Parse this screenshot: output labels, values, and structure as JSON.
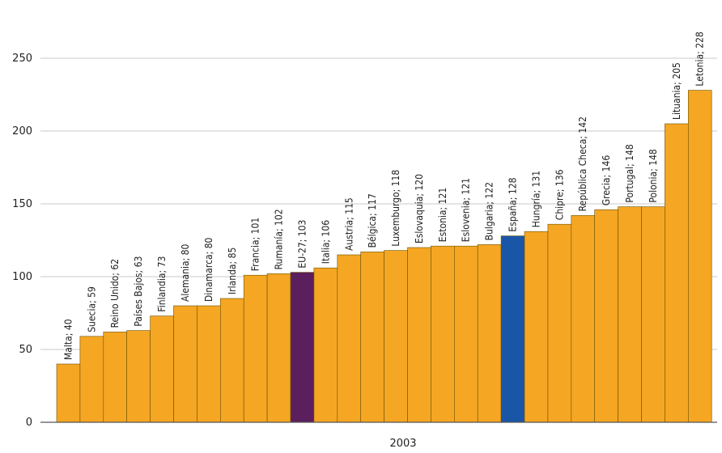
{
  "chart_data": {
    "type": "bar",
    "x_category": "2003",
    "categories": [
      "Malta",
      "Suecia",
      "Reino Unido",
      "Países Bajos",
      "Finlandia",
      "Alemania",
      "Dinamarca",
      "Irlanda",
      "Francia",
      "Rumanía",
      "EU-27",
      "Italia",
      "Austria",
      "Bélgica",
      "Luxemburgo",
      "Eslovaquia",
      "Estonia",
      "Eslovenia",
      "Bulgaria",
      "España",
      "Hungría",
      "Chipre",
      "República Checa",
      "Grecia",
      "Portugal",
      "Polonia",
      "Lituania",
      "Letonia"
    ],
    "values": [
      40,
      59,
      62,
      63,
      73,
      80,
      80,
      85,
      101,
      102,
      103,
      106,
      115,
      117,
      118,
      120,
      121,
      121,
      122,
      128,
      131,
      136,
      142,
      146,
      148,
      148,
      205,
      228
    ],
    "bar_labels": [
      "Malta; 40",
      "Suecia; 59",
      "Reino Unido; 62",
      "Países Bajos; 63",
      "Finlandia; 73",
      "Alemania; 80",
      "Dinamarca; 80",
      "Irlanda; 85",
      "Francia; 101",
      "Rumanía; 102",
      "EU-27; 103",
      "Italia; 106",
      "Austria; 115",
      "Bélgica; 117",
      "Luxemburgo; 118",
      "Eslovaquia; 120",
      "Estonia; 121",
      "Eslovenia; 121",
      "Bulgaria; 122",
      "España; 128",
      "Hungría; 131",
      "Chipre; 136",
      "República Checa; 142",
      "Grecia; 146",
      "Portugal; 148",
      "Polonia; 148",
      "Lituania; 205",
      "Letonia; 228"
    ],
    "ylim": [
      0,
      250
    ],
    "yticks": [
      0,
      50,
      100,
      150,
      200,
      250
    ],
    "grid": true,
    "colors": {
      "default": "#f5a623",
      "EU-27": "#5b1f5e",
      "España": "#1a56a8"
    }
  }
}
